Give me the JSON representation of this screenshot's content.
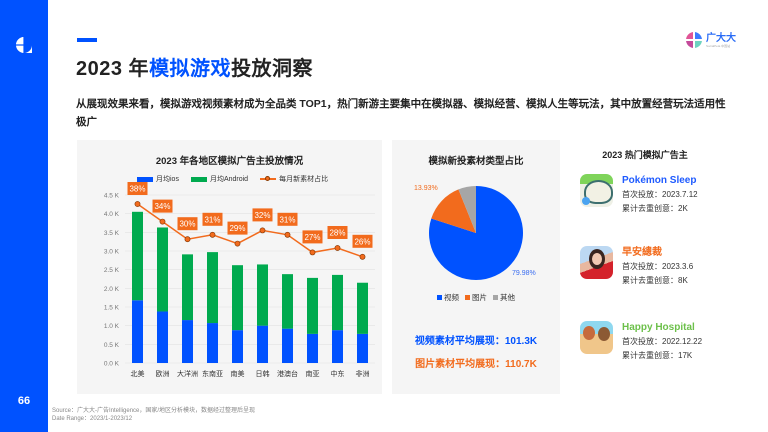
{
  "sidebar": {
    "page_number": "66",
    "logo_icon": "brand-pie-icon"
  },
  "header": {
    "title_prefix": "2023 年",
    "title_highlight": "模拟游戏",
    "title_suffix": "投放洞察",
    "brand": {
      "name_cn": "广大大",
      "name_en": "SocialPeta 中国站"
    }
  },
  "description": "从展现效果来看，模拟游戏视频素材成为全品类 TOP1，热门新游主要集中在模拟器、模拟经营、模拟人生等玩法，其中放置经营玩法适用性极广",
  "bar_chart": {
    "title": "2023 年各地区模拟广告主投放情况",
    "legend": {
      "ios": "月均ios",
      "android": "月均Android",
      "ratio": "每月新素材占比"
    },
    "y_ticks": [
      "0.0 K",
      "0.5 K",
      "1.0 K",
      "1.5 K",
      "2.0 K",
      "2.5 K",
      "3.0 K",
      "3.5 K",
      "4.0 K",
      "4.5 K"
    ]
  },
  "pie_chart": {
    "title": "模拟新投素材类型占比",
    "labels": {
      "image_pct": "13.93%",
      "video_pct": "79.98%"
    },
    "legend": [
      "视频",
      "图片",
      "其他"
    ],
    "stats": {
      "video": "视频素材平均展现：101.3K",
      "image": "图片素材平均展现：110.7K"
    }
  },
  "advertisers": {
    "title": "2023 热门模拟广告主",
    "items": [
      {
        "name": "Pokémon Sleep",
        "color": "#1F5BFF",
        "first_launch": "首次投放：2023.7.12",
        "creatives": "累计去重创意：2K"
      },
      {
        "name": "早安總裁",
        "color": "#F26B1D",
        "first_launch": "首次投放：2023.3.6",
        "creatives": "累计去重创意：8K"
      },
      {
        "name": "Happy Hospital",
        "color": "#6CC04A",
        "first_launch": "首次投放：2022.12.22",
        "creatives": "累计去重创意：17K"
      }
    ]
  },
  "footer": {
    "source": "Source：广大大-广告Intelligence，国家/地区分析模块，数据经过整理后呈现",
    "date_range": "Date Range：2023/1-2023/12"
  },
  "colors": {
    "primary": "#0052FF",
    "android": "#00AA4F",
    "orange": "#F26B1D",
    "gray": "#A6A6A6",
    "card_bg": "#F5F5F5"
  },
  "chart_data": [
    {
      "type": "bar",
      "title": "2023 年各地区模拟广告主投放情况",
      "stacked": true,
      "categories": [
        "北美",
        "欧洲",
        "大洋洲",
        "东南亚",
        "南美",
        "日韩",
        "港澳台",
        "南亚",
        "中东",
        "非洲"
      ],
      "series": [
        {
          "name": "月均ios",
          "type": "bar",
          "unit": "K",
          "values": [
            1.68,
            1.38,
            1.15,
            1.07,
            0.88,
            1.0,
            0.92,
            0.78,
            0.88,
            0.78
          ]
        },
        {
          "name": "月均Android",
          "type": "bar",
          "unit": "K",
          "values": [
            2.37,
            2.25,
            1.76,
            1.9,
            1.74,
            1.64,
            1.46,
            1.5,
            1.48,
            1.37
          ]
        },
        {
          "name": "每月新素材占比",
          "type": "line",
          "unit": "%",
          "values": [
            38,
            34,
            30,
            31,
            29,
            32,
            31,
            27,
            28,
            26
          ]
        }
      ],
      "xlabel": "",
      "ylabel": "",
      "ylim": [
        0,
        4.5
      ],
      "y_ticks": [
        "0.0 K",
        "0.5 K",
        "1.0 K",
        "1.5 K",
        "2.0 K",
        "2.5 K",
        "3.0 K",
        "3.5 K",
        "4.0 K",
        "4.5 K"
      ],
      "grid": true,
      "legend_position": "top"
    },
    {
      "type": "pie",
      "title": "模拟新投素材类型占比",
      "categories": [
        "视频",
        "图片",
        "其他"
      ],
      "values": [
        79.98,
        13.93,
        6.09
      ],
      "data_labels": [
        "79.98%",
        "13.93%",
        ""
      ],
      "legend_position": "bottom"
    }
  ]
}
